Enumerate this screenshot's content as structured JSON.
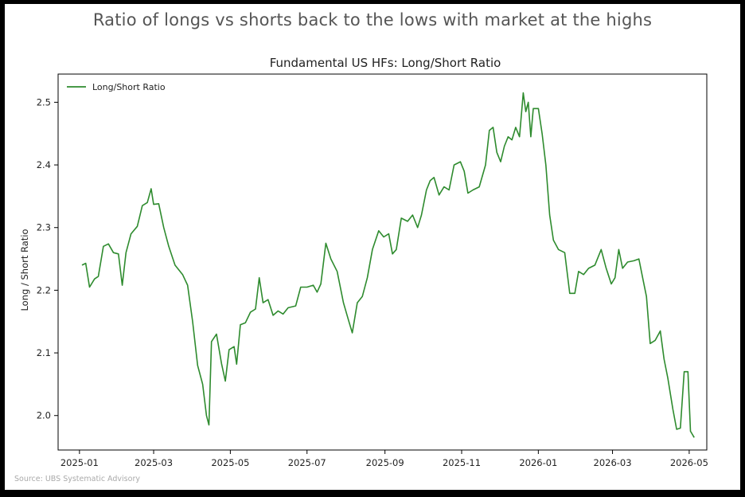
{
  "headline": "Ratio of longs vs shorts back to the lows with market at the highs",
  "source": "Source: UBS Systematic Advisory",
  "colors": {
    "line": "#2e8b2e",
    "axis": "#000000",
    "text": "#222222",
    "headline": "#555555"
  },
  "chart_data": {
    "type": "line",
    "title": "Fundamental US HFs: Long/Short Ratio",
    "xlabel": "",
    "ylabel": "Long / Short Ratio",
    "legend": "top-left",
    "grid": false,
    "xlim": [
      "2024-12-15",
      "2026-05-15"
    ],
    "ylim": [
      1.945,
      2.545
    ],
    "xticks": [
      "2025-01",
      "2025-03",
      "2025-05",
      "2025-07",
      "2025-09",
      "2025-11",
      "2026-01",
      "2026-03",
      "2026-05"
    ],
    "yticks": [
      2.0,
      2.1,
      2.2,
      2.3,
      2.4,
      2.5
    ],
    "ytick_labels": [
      "2.0",
      "2.1",
      "2.2",
      "2.3",
      "2.4",
      "2.5"
    ],
    "series": [
      {
        "name": "Long/Short Ratio",
        "color": "#2e8b2e",
        "points": [
          [
            "2025-01-03",
            2.24
          ],
          [
            "2025-01-06",
            2.243
          ],
          [
            "2025-01-09",
            2.205
          ],
          [
            "2025-01-13",
            2.218
          ],
          [
            "2025-01-16",
            2.222
          ],
          [
            "2025-01-20",
            2.27
          ],
          [
            "2025-01-24",
            2.274
          ],
          [
            "2025-01-28",
            2.26
          ],
          [
            "2025-02-01",
            2.258
          ],
          [
            "2025-02-04",
            2.208
          ],
          [
            "2025-02-07",
            2.26
          ],
          [
            "2025-02-11",
            2.29
          ],
          [
            "2025-02-16",
            2.302
          ],
          [
            "2025-02-20",
            2.335
          ],
          [
            "2025-02-24",
            2.34
          ],
          [
            "2025-02-27",
            2.362
          ],
          [
            "2025-03-01",
            2.337
          ],
          [
            "2025-03-05",
            2.338
          ],
          [
            "2025-03-09",
            2.3
          ],
          [
            "2025-03-13",
            2.27
          ],
          [
            "2025-03-18",
            2.24
          ],
          [
            "2025-03-24",
            2.225
          ],
          [
            "2025-03-28",
            2.208
          ],
          [
            "2025-04-01",
            2.15
          ],
          [
            "2025-04-05",
            2.08
          ],
          [
            "2025-04-09",
            2.05
          ],
          [
            "2025-04-12",
            2.0
          ],
          [
            "2025-04-14",
            1.985
          ],
          [
            "2025-04-16",
            2.118
          ],
          [
            "2025-04-20",
            2.13
          ],
          [
            "2025-04-24",
            2.083
          ],
          [
            "2025-04-27",
            2.055
          ],
          [
            "2025-04-30",
            2.105
          ],
          [
            "2025-05-04",
            2.11
          ],
          [
            "2025-05-06",
            2.082
          ],
          [
            "2025-05-09",
            2.145
          ],
          [
            "2025-05-13",
            2.148
          ],
          [
            "2025-05-17",
            2.165
          ],
          [
            "2025-05-21",
            2.17
          ],
          [
            "2025-05-24",
            2.22
          ],
          [
            "2025-05-27",
            2.18
          ],
          [
            "2025-05-31",
            2.185
          ],
          [
            "2025-06-04",
            2.16
          ],
          [
            "2025-06-08",
            2.167
          ],
          [
            "2025-06-12",
            2.162
          ],
          [
            "2025-06-16",
            2.172
          ],
          [
            "2025-06-22",
            2.175
          ],
          [
            "2025-06-26",
            2.205
          ],
          [
            "2025-07-01",
            2.205
          ],
          [
            "2025-07-06",
            2.208
          ],
          [
            "2025-07-09",
            2.197
          ],
          [
            "2025-07-12",
            2.21
          ],
          [
            "2025-07-16",
            2.275
          ],
          [
            "2025-07-20",
            2.25
          ],
          [
            "2025-07-25",
            2.23
          ],
          [
            "2025-07-30",
            2.18
          ],
          [
            "2025-08-03",
            2.152
          ],
          [
            "2025-08-06",
            2.132
          ],
          [
            "2025-08-10",
            2.18
          ],
          [
            "2025-08-14",
            2.19
          ],
          [
            "2025-08-18",
            2.22
          ],
          [
            "2025-08-22",
            2.265
          ],
          [
            "2025-08-27",
            2.295
          ],
          [
            "2025-08-31",
            2.285
          ],
          [
            "2025-09-04",
            2.29
          ],
          [
            "2025-09-07",
            2.258
          ],
          [
            "2025-09-10",
            2.265
          ],
          [
            "2025-09-14",
            2.315
          ],
          [
            "2025-09-19",
            2.31
          ],
          [
            "2025-09-23",
            2.32
          ],
          [
            "2025-09-27",
            2.3
          ],
          [
            "2025-09-30",
            2.32
          ],
          [
            "2025-10-04",
            2.36
          ],
          [
            "2025-10-07",
            2.375
          ],
          [
            "2025-10-10",
            2.38
          ],
          [
            "2025-10-14",
            2.352
          ],
          [
            "2025-10-18",
            2.365
          ],
          [
            "2025-10-22",
            2.36
          ],
          [
            "2025-10-26",
            2.4
          ],
          [
            "2025-10-31",
            2.405
          ],
          [
            "2025-11-03",
            2.39
          ],
          [
            "2025-11-06",
            2.355
          ],
          [
            "2025-11-10",
            2.36
          ],
          [
            "2025-11-15",
            2.365
          ],
          [
            "2025-11-20",
            2.4
          ],
          [
            "2025-11-23",
            2.455
          ],
          [
            "2025-11-26",
            2.46
          ],
          [
            "2025-11-29",
            2.42
          ],
          [
            "2025-12-02",
            2.405
          ],
          [
            "2025-12-05",
            2.43
          ],
          [
            "2025-12-08",
            2.445
          ],
          [
            "2025-12-11",
            2.44
          ],
          [
            "2025-12-14",
            2.46
          ],
          [
            "2025-12-17",
            2.445
          ],
          [
            "2025-12-20",
            2.515
          ],
          [
            "2025-12-22",
            2.485
          ],
          [
            "2025-12-24",
            2.5
          ],
          [
            "2025-12-26",
            2.445
          ],
          [
            "2025-12-28",
            2.49
          ],
          [
            "2026-01-01",
            2.49
          ],
          [
            "2026-01-04",
            2.45
          ],
          [
            "2026-01-07",
            2.4
          ],
          [
            "2026-01-10",
            2.32
          ],
          [
            "2026-01-13",
            2.28
          ],
          [
            "2026-01-17",
            2.265
          ],
          [
            "2026-01-22",
            2.26
          ],
          [
            "2026-01-26",
            2.195
          ],
          [
            "2026-01-30",
            2.195
          ],
          [
            "2026-02-02",
            2.23
          ],
          [
            "2026-02-06",
            2.225
          ],
          [
            "2026-02-10",
            2.235
          ],
          [
            "2026-02-15",
            2.24
          ],
          [
            "2026-02-20",
            2.265
          ],
          [
            "2026-02-24",
            2.235
          ],
          [
            "2026-02-28",
            2.21
          ],
          [
            "2026-03-03",
            2.22
          ],
          [
            "2026-03-06",
            2.265
          ],
          [
            "2026-03-09",
            2.235
          ],
          [
            "2026-03-13",
            2.245
          ],
          [
            "2026-03-18",
            2.247
          ],
          [
            "2026-03-22",
            2.25
          ],
          [
            "2026-03-25",
            2.22
          ],
          [
            "2026-03-28",
            2.19
          ],
          [
            "2026-03-31",
            2.115
          ],
          [
            "2026-04-04",
            2.12
          ],
          [
            "2026-04-08",
            2.135
          ],
          [
            "2026-04-11",
            2.09
          ],
          [
            "2026-04-14",
            2.06
          ],
          [
            "2026-04-18",
            2.01
          ],
          [
            "2026-04-21",
            1.978
          ],
          [
            "2026-04-24",
            1.98
          ],
          [
            "2026-04-27",
            2.07
          ],
          [
            "2026-04-30",
            2.07
          ],
          [
            "2026-05-02",
            1.975
          ],
          [
            "2026-05-05",
            1.965
          ]
        ]
      }
    ]
  }
}
